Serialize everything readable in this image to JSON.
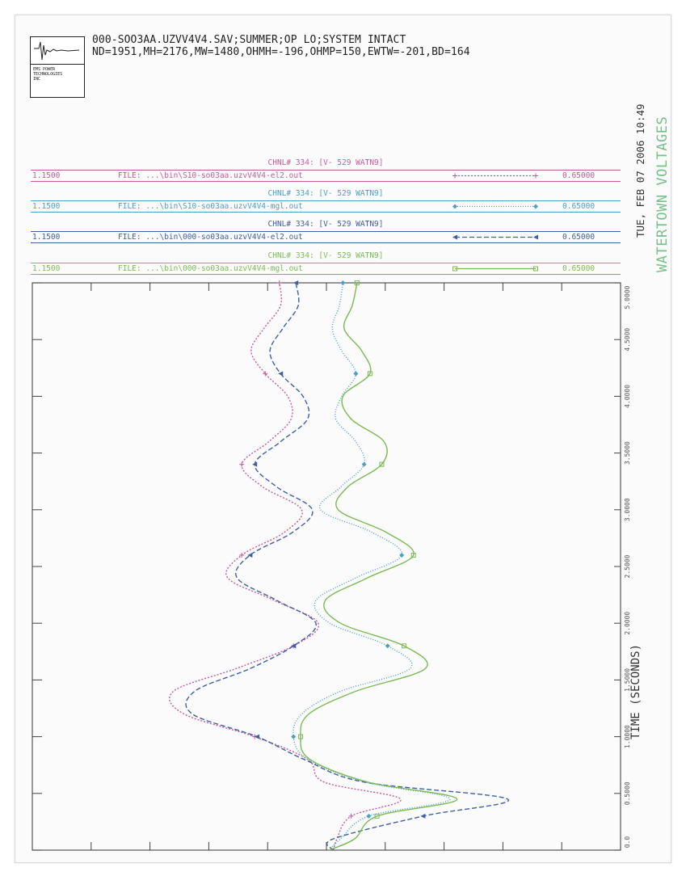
{
  "header": {
    "line1": "000-SOO3AA.UZVV4V4.SAV;SUMMER;OP LO;SYSTEM INTACT",
    "line2": "ND=1951,MH=2176,MW=1480,OHMH=-196,OHMP=150,EWTW=-201,BD=164",
    "logo_text": "EMS POWER\nTECHNOLOGIES\nINC"
  },
  "side": {
    "date": "TUE, FEB 07 2006   10:49",
    "plot_name": "WATERTOWN VOLTAGES"
  },
  "legend": [
    {
      "title": "CHNL# 334: [V- 529 WATN9]",
      "ymax": "1.1500",
      "file": "FILE: ...\\bin\\S10-so03aa.uzvV4V4-el2.out",
      "ymin": "0.65000",
      "color": "#c65a9c",
      "dash": "2,2",
      "marker": "plus"
    },
    {
      "title": "CHNL# 334: [V- 529 WATN9]",
      "ymax": "1.1500",
      "file": "FILE: ...\\bin\\S10-so03aa.uzvV4V4-mgl.out",
      "ymin": "0.65000",
      "color": "#4aa0c8",
      "dash": "1,2",
      "marker": "diamond"
    },
    {
      "title": "CHNL# 334: [V- 529 WATN9]",
      "ymax": "1.1500",
      "file": "FILE: ...\\bin\\000-so03aa.uzvV4V4-el2.out",
      "ymin": "0.65000",
      "color": "#3f5fa6",
      "dash": "6,3",
      "marker": "arrow"
    },
    {
      "title": "CHNL# 334: [V- 529 WATN9]",
      "ymax": "1.1500",
      "file": "FILE: ...\\bin\\000-so03aa.uzvV4V4-mgl.out",
      "ymin": "0.65000",
      "color": "#7bbb55",
      "dash": "",
      "marker": "square"
    }
  ],
  "chart_data": {
    "type": "line",
    "xlabel": "TIME (SECONDS)",
    "xlim": [
      0,
      5
    ],
    "ylim": [
      0.65,
      1.15
    ],
    "x_tick_labels": [
      "0.0",
      "0.5000",
      "1.0000",
      "1.5000",
      "2.0000",
      "2.5000",
      "3.0000",
      "3.5000",
      "4.0000",
      "4.5000",
      "5.0000"
    ],
    "series": [
      {
        "name": "FILE: ...\\bin\\S10-so03aa.uzvV4V4-el2.out",
        "x": [
          0,
          0.1,
          0.3,
          0.45,
          0.6,
          0.8,
          1.0,
          1.2,
          1.4,
          1.6,
          1.8,
          2.0,
          2.2,
          2.4,
          2.6,
          2.8,
          3.0,
          3.2,
          3.4,
          3.6,
          3.8,
          4.0,
          4.2,
          4.4,
          4.6,
          4.8,
          5.0
        ],
        "y": [
          0.906,
          0.909,
          0.921,
          0.963,
          0.898,
          0.884,
          0.839,
          0.779,
          0.77,
          0.823,
          0.872,
          0.893,
          0.856,
          0.816,
          0.828,
          0.864,
          0.879,
          0.846,
          0.828,
          0.851,
          0.87,
          0.867,
          0.848,
          0.836,
          0.847,
          0.861,
          0.86
        ]
      },
      {
        "name": "FILE: ...\\bin\\S10-so03aa.uzvV4V4-mgl.out",
        "x": [
          0,
          0.1,
          0.3,
          0.45,
          0.6,
          0.8,
          1.0,
          1.2,
          1.4,
          1.6,
          1.8,
          2.0,
          2.2,
          2.4,
          2.6,
          2.8,
          3.0,
          3.2,
          3.4,
          3.6,
          3.8,
          4.0,
          4.2,
          4.4,
          4.6,
          4.8,
          5.0
        ],
        "y": [
          0.902,
          0.912,
          0.936,
          1.005,
          0.933,
          0.884,
          0.872,
          0.879,
          0.912,
          0.971,
          0.952,
          0.903,
          0.891,
          0.925,
          0.964,
          0.939,
          0.895,
          0.912,
          0.932,
          0.925,
          0.908,
          0.913,
          0.925,
          0.913,
          0.905,
          0.911,
          0.914
        ]
      },
      {
        "name": "FILE: ...\\bin\\000-so03aa.uzvV4V4-el2.out",
        "x": [
          0,
          0.1,
          0.3,
          0.45,
          0.6,
          0.8,
          1.0,
          1.2,
          1.4,
          1.6,
          1.8,
          2.0,
          2.2,
          2.4,
          2.6,
          2.8,
          3.0,
          3.2,
          3.4,
          3.6,
          3.8,
          4.0,
          4.2,
          4.4,
          4.6,
          4.8,
          5.0
        ],
        "y": [
          0.906,
          0.906,
          0.982,
          1.054,
          0.932,
          0.881,
          0.841,
          0.786,
          0.788,
          0.835,
          0.872,
          0.891,
          0.858,
          0.824,
          0.835,
          0.871,
          0.888,
          0.858,
          0.839,
          0.861,
          0.884,
          0.88,
          0.861,
          0.852,
          0.863,
          0.876,
          0.874
        ]
      },
      {
        "name": "FILE: ...\\bin\\000-so03aa.uzvV4V4-mgl.out",
        "x": [
          0,
          0.1,
          0.3,
          0.45,
          0.6,
          0.8,
          1.0,
          1.2,
          1.4,
          1.6,
          1.8,
          2.0,
          2.2,
          2.4,
          2.6,
          2.8,
          3.0,
          3.2,
          3.4,
          3.6,
          3.8,
          4.0,
          4.2,
          4.4,
          4.6,
          4.8,
          5.0
        ],
        "y": [
          0.902,
          0.924,
          0.943,
          1.011,
          0.935,
          0.886,
          0.878,
          0.885,
          0.925,
          0.984,
          0.966,
          0.912,
          0.899,
          0.935,
          0.974,
          0.951,
          0.91,
          0.918,
          0.947,
          0.949,
          0.921,
          0.914,
          0.937,
          0.93,
          0.915,
          0.922,
          0.926
        ]
      }
    ]
  }
}
